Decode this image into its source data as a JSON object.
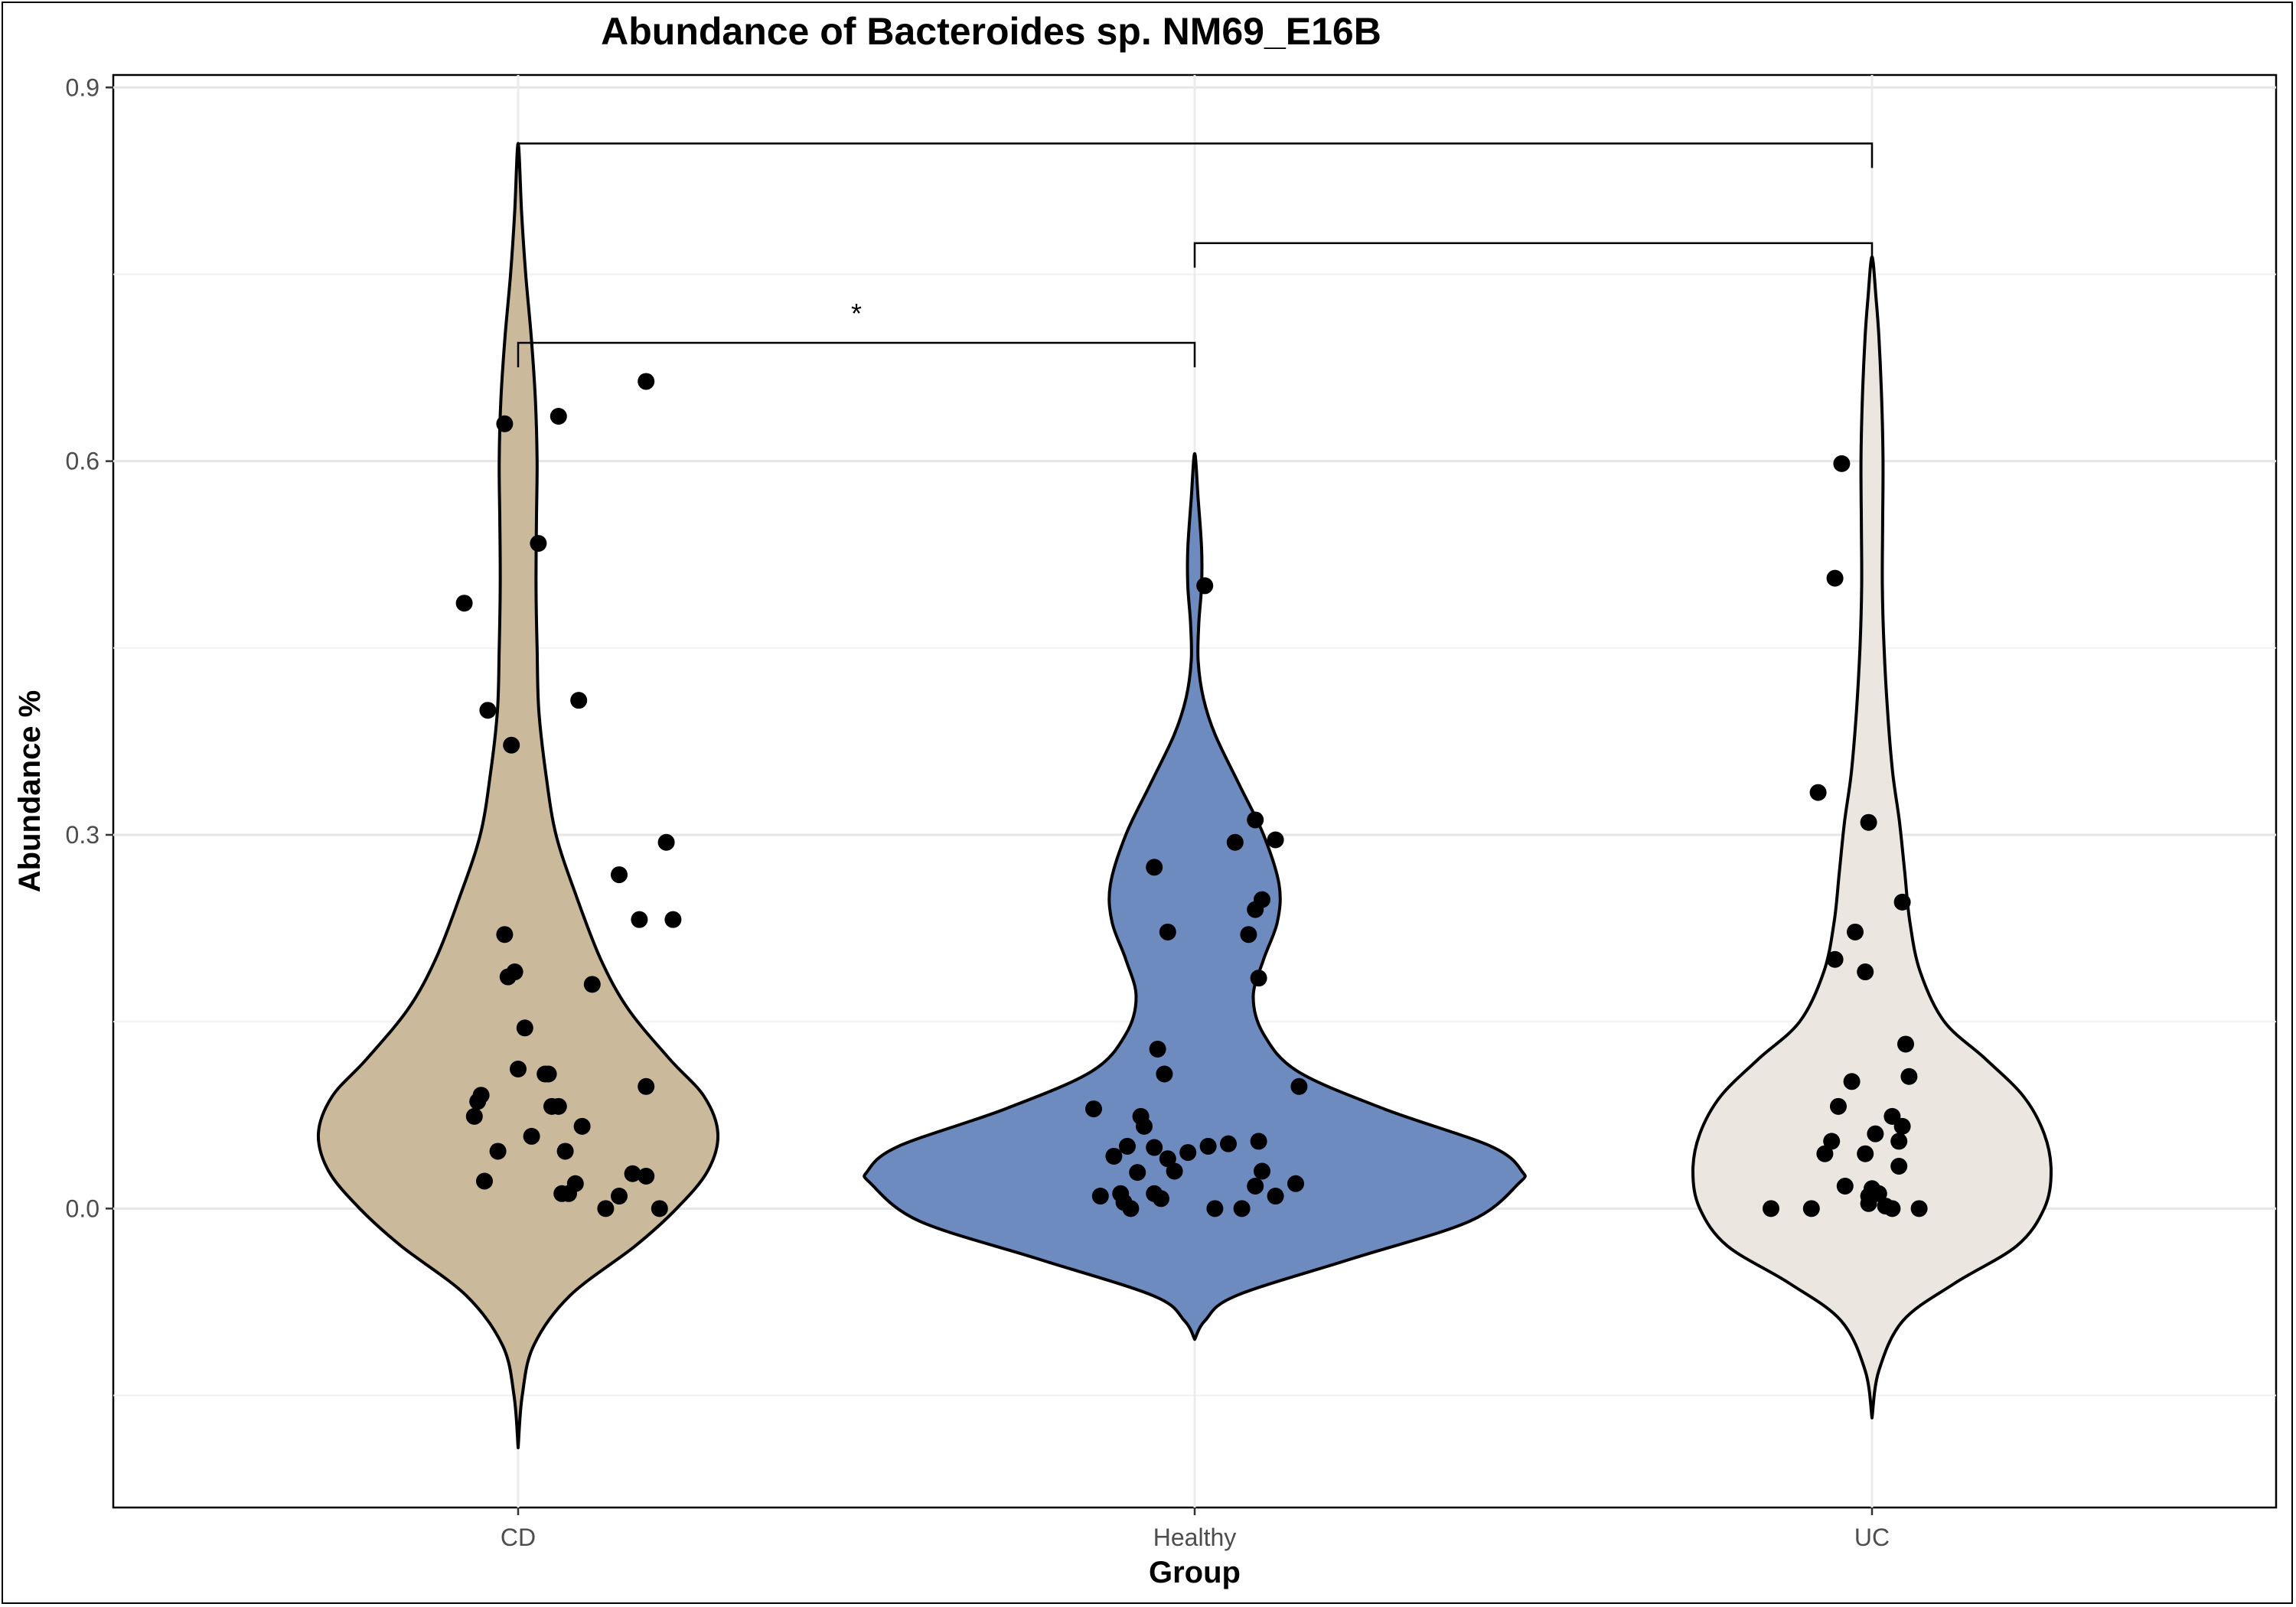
{
  "chart_data": {
    "type": "violin",
    "title": "Abundance of Bacteroides sp. NM69_E16B",
    "xlabel": "Group",
    "ylabel": "Abundance %",
    "categories": [
      "CD",
      "Healthy",
      "UC"
    ],
    "ylim": [
      -0.24,
      0.91
    ],
    "yticks": [
      0.0,
      0.3,
      0.6,
      0.9
    ],
    "ytick_labels": [
      "0.0",
      "0.3",
      "0.6",
      "0.9"
    ],
    "grid": true,
    "legend": "none",
    "colors": {
      "CD": "#cbb99b",
      "Healthy": "#6e8bbf",
      "UC": "#ebe7e0"
    },
    "point_color": "#000000",
    "violins": [
      {
        "group": "CD",
        "ymin": -0.192,
        "ymax": 0.855,
        "profile": [
          [
            -0.192,
            0.0
          ],
          [
            -0.15,
            0.012
          ],
          [
            -0.11,
            0.045
          ],
          [
            -0.07,
            0.15
          ],
          [
            -0.03,
            0.34
          ],
          [
            0.0,
            0.46
          ],
          [
            0.03,
            0.55
          ],
          [
            0.06,
            0.58
          ],
          [
            0.09,
            0.54
          ],
          [
            0.12,
            0.44
          ],
          [
            0.16,
            0.32
          ],
          [
            0.2,
            0.24
          ],
          [
            0.25,
            0.17
          ],
          [
            0.3,
            0.11
          ],
          [
            0.35,
            0.08
          ],
          [
            0.4,
            0.06
          ],
          [
            0.45,
            0.055
          ],
          [
            0.5,
            0.052
          ],
          [
            0.55,
            0.053
          ],
          [
            0.6,
            0.055
          ],
          [
            0.65,
            0.05
          ],
          [
            0.7,
            0.038
          ],
          [
            0.75,
            0.022
          ],
          [
            0.8,
            0.01
          ],
          [
            0.855,
            0.0
          ]
        ],
        "points": [
          [
            -0.13,
            0.074
          ],
          [
            -0.12,
            0.086
          ],
          [
            -0.11,
            0.091
          ],
          [
            -0.06,
            0.046
          ],
          [
            -0.04,
            0.22
          ],
          [
            -0.03,
            0.186
          ],
          [
            -0.1,
            0.022
          ],
          [
            -0.04,
            0.63
          ],
          [
            -0.16,
            0.486
          ],
          [
            -0.09,
            0.4
          ],
          [
            0.06,
            0.534
          ],
          [
            -0.02,
            0.372
          ],
          [
            -0.01,
            0.19
          ],
          [
            0.02,
            0.145
          ],
          [
            0.04,
            0.058
          ],
          [
            0.09,
            0.108
          ],
          [
            0.0,
            0.112
          ],
          [
            0.1,
            0.082
          ],
          [
            0.12,
            0.082
          ],
          [
            0.08,
            0.108
          ],
          [
            0.14,
            0.046
          ],
          [
            0.13,
            0.012
          ],
          [
            0.15,
            0.012
          ],
          [
            0.17,
            0.02
          ],
          [
            0.19,
            0.066
          ],
          [
            0.22,
            0.18
          ],
          [
            0.12,
            0.636
          ],
          [
            0.18,
            0.408
          ],
          [
            0.3,
            0.268
          ],
          [
            0.36,
            0.232
          ],
          [
            0.46,
            0.232
          ],
          [
            0.44,
            0.294
          ],
          [
            0.38,
            0.098
          ],
          [
            0.34,
            0.028
          ],
          [
            0.38,
            0.026
          ],
          [
            0.3,
            0.01
          ],
          [
            0.42,
            0.0
          ],
          [
            0.26,
            0.0
          ],
          [
            0.38,
            0.664
          ]
        ]
      },
      {
        "group": "Healthy",
        "ymin": -0.105,
        "ymax": 0.606,
        "profile": [
          [
            -0.105,
            0.0
          ],
          [
            -0.09,
            0.03
          ],
          [
            -0.07,
            0.12
          ],
          [
            -0.04,
            0.46
          ],
          [
            -0.01,
            0.8
          ],
          [
            0.02,
            0.94
          ],
          [
            0.03,
            0.95
          ],
          [
            0.05,
            0.86
          ],
          [
            0.08,
            0.55
          ],
          [
            0.11,
            0.3
          ],
          [
            0.14,
            0.2
          ],
          [
            0.17,
            0.17
          ],
          [
            0.2,
            0.2
          ],
          [
            0.23,
            0.24
          ],
          [
            0.26,
            0.245
          ],
          [
            0.3,
            0.2
          ],
          [
            0.34,
            0.13
          ],
          [
            0.38,
            0.06
          ],
          [
            0.41,
            0.025
          ],
          [
            0.44,
            0.01
          ],
          [
            0.47,
            0.012
          ],
          [
            0.5,
            0.02
          ],
          [
            0.53,
            0.02
          ],
          [
            0.57,
            0.01
          ],
          [
            0.606,
            0.0
          ]
        ],
        "points": [
          [
            -0.3,
            0.08
          ],
          [
            -0.24,
            0.042
          ],
          [
            -0.28,
            0.01
          ],
          [
            -0.16,
            0.074
          ],
          [
            -0.15,
            0.066
          ],
          [
            -0.2,
            0.05
          ],
          [
            -0.17,
            0.029
          ],
          [
            -0.22,
            0.012
          ],
          [
            -0.21,
            0.005
          ],
          [
            -0.19,
            0.0
          ],
          [
            -0.12,
            0.049
          ],
          [
            -0.08,
            0.04
          ],
          [
            -0.06,
            0.03
          ],
          [
            -0.1,
            0.008
          ],
          [
            -0.12,
            0.012
          ],
          [
            -0.02,
            0.045
          ],
          [
            0.04,
            0.05
          ],
          [
            0.1,
            0.052
          ],
          [
            0.06,
            0.0
          ],
          [
            0.14,
            0.0
          ],
          [
            0.18,
            0.018
          ],
          [
            0.2,
            0.03
          ],
          [
            0.24,
            0.01
          ],
          [
            0.3,
            0.02
          ],
          [
            -0.11,
            0.128
          ],
          [
            -0.09,
            0.108
          ],
          [
            -0.08,
            0.222
          ],
          [
            -0.12,
            0.274
          ],
          [
            0.03,
            0.5
          ],
          [
            0.12,
            0.294
          ],
          [
            0.18,
            0.312
          ],
          [
            0.24,
            0.296
          ],
          [
            0.2,
            0.248
          ],
          [
            0.18,
            0.24
          ],
          [
            0.16,
            0.22
          ],
          [
            0.19,
            0.185
          ],
          [
            0.31,
            0.098
          ],
          [
            0.19,
            0.054
          ]
        ]
      },
      {
        "group": "UC",
        "ymin": -0.168,
        "ymax": 0.764,
        "profile": [
          [
            -0.168,
            0.0
          ],
          [
            -0.13,
            0.02
          ],
          [
            -0.09,
            0.09
          ],
          [
            -0.06,
            0.24
          ],
          [
            -0.03,
            0.42
          ],
          [
            0.0,
            0.5
          ],
          [
            0.03,
            0.52
          ],
          [
            0.06,
            0.5
          ],
          [
            0.09,
            0.44
          ],
          [
            0.12,
            0.33
          ],
          [
            0.15,
            0.21
          ],
          [
            0.19,
            0.14
          ],
          [
            0.23,
            0.11
          ],
          [
            0.27,
            0.095
          ],
          [
            0.31,
            0.08
          ],
          [
            0.35,
            0.06
          ],
          [
            0.4,
            0.045
          ],
          [
            0.45,
            0.035
          ],
          [
            0.5,
            0.03
          ],
          [
            0.55,
            0.031
          ],
          [
            0.6,
            0.032
          ],
          [
            0.65,
            0.028
          ],
          [
            0.7,
            0.02
          ],
          [
            0.73,
            0.012
          ],
          [
            0.764,
            0.0
          ]
        ],
        "points": [
          [
            -0.16,
            0.334
          ],
          [
            -0.14,
            0.044
          ],
          [
            -0.12,
            0.054
          ],
          [
            -0.11,
            0.2
          ],
          [
            -0.3,
            0.0
          ],
          [
            -0.1,
            0.082
          ],
          [
            -0.08,
            0.018
          ],
          [
            -0.18,
            0.0
          ],
          [
            -0.11,
            0.506
          ],
          [
            -0.09,
            0.598
          ],
          [
            -0.06,
            0.102
          ],
          [
            -0.05,
            0.222
          ],
          [
            -0.02,
            0.044
          ],
          [
            -0.02,
            0.19
          ],
          [
            -0.01,
            0.01
          ],
          [
            0.0,
            0.016
          ],
          [
            0.02,
            0.012
          ],
          [
            0.01,
            0.06
          ],
          [
            0.04,
            0.002
          ],
          [
            0.06,
            0.0
          ],
          [
            0.08,
            0.054
          ],
          [
            -0.01,
            0.31
          ],
          [
            0.09,
            0.246
          ],
          [
            0.1,
            0.132
          ],
          [
            0.11,
            0.106
          ],
          [
            0.09,
            0.066
          ],
          [
            0.08,
            0.034
          ],
          [
            0.06,
            0.074
          ],
          [
            0.14,
            0.0
          ],
          [
            -0.01,
            0.004
          ]
        ]
      }
    ],
    "comparisons": [
      {
        "from": "CD",
        "to": "Healthy",
        "y": 0.695,
        "label": "*"
      },
      {
        "from": "Healthy",
        "to": "UC",
        "y": 0.775,
        "label": ""
      },
      {
        "from": "CD",
        "to": "UC",
        "y": 0.855,
        "label": ""
      }
    ]
  }
}
